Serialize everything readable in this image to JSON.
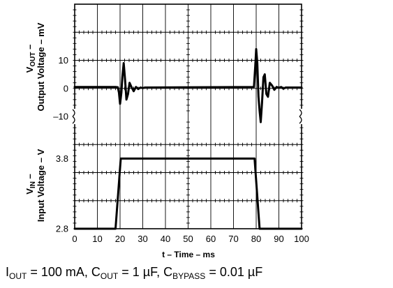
{
  "chart_data": [
    {
      "type": "line",
      "panel": "top",
      "ylabel_line1_main": "V",
      "ylabel_line1_sub": "OUT",
      "ylabel_line1_suffix": " –",
      "ylabel_line2": "Output Voltage – mV",
      "xlim": [
        0,
        100
      ],
      "ylim": [
        -10,
        30
      ],
      "yticks": [
        {
          "value": 10,
          "label": "10"
        },
        {
          "value": 0,
          "label": "0"
        },
        {
          "value": -10,
          "label": "–10"
        }
      ],
      "series": [
        {
          "x": [
            0,
            18,
            19,
            19.5,
            20,
            20.6,
            21,
            21.6,
            22.2,
            22.8,
            23.5,
            24.2,
            25,
            26,
            27,
            28,
            29,
            30,
            31,
            79,
            79.6,
            80,
            80.5,
            81,
            81.5,
            82,
            82.6,
            83.2,
            83.8,
            84.5,
            85.2,
            86,
            87,
            88,
            89,
            90,
            91,
            92,
            93,
            100
          ],
          "y": [
            0.5,
            0.5,
            0.4,
            -1.5,
            -5.5,
            -1.5,
            4,
            9,
            3,
            -4,
            -2,
            2,
            0.5,
            -1,
            0.5,
            -0.2,
            0.3,
            0.1,
            0.3,
            0.5,
            8,
            14,
            9,
            -3,
            -8,
            -12,
            -5,
            4,
            5,
            -2,
            -3,
            2,
            1,
            -0.5,
            0.5,
            0.2,
            0.5,
            -0.1,
            0.3,
            0.3
          ]
        }
      ]
    },
    {
      "type": "line",
      "panel": "bottom",
      "ylabel_line1_main": "V",
      "ylabel_line1_sub": "IN",
      "ylabel_line1_suffix": " –",
      "ylabel_line2": "Input Voltage – V",
      "xlabel": "t – Time – ms",
      "xlim": [
        0,
        100
      ],
      "ylim": [
        2.8,
        4.4
      ],
      "yticks": [
        {
          "value": 3.8,
          "label": "3.8"
        },
        {
          "value": 2.8,
          "label": "2.8"
        }
      ],
      "xticks": [
        "0",
        "10",
        "20",
        "30",
        "40",
        "50",
        "60",
        "70",
        "80",
        "90",
        "100"
      ],
      "series": [
        {
          "x": [
            0,
            18,
            20.3,
            21,
            40,
            60,
            79.3,
            81.5,
            82,
            100
          ],
          "y": [
            2.8,
            2.8,
            3.8,
            3.8,
            3.8,
            3.8,
            3.8,
            2.8,
            2.8,
            2.8
          ]
        }
      ]
    }
  ],
  "conditions": {
    "i_main": "I",
    "i_sub": "OUT",
    "i_rest": " = 100 mA, C",
    "c_sub": "OUT",
    "c_rest": " = 1 µF, C",
    "b_sub": "BYPASS",
    "b_rest": " = 0.01 µF"
  }
}
